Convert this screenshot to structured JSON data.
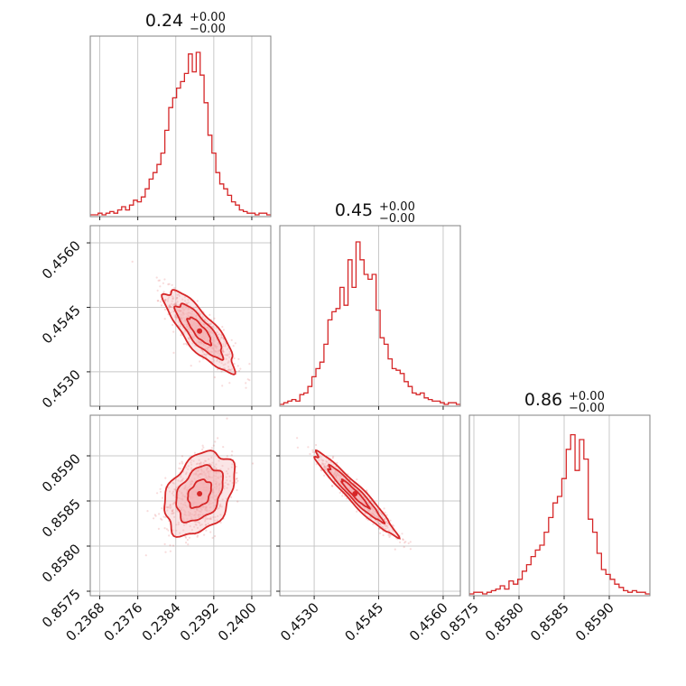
{
  "chart_data": {
    "type": "corner",
    "color": "#d62728",
    "fill_color": "#f4b4b7",
    "grid": true,
    "parameters": [
      {
        "title_value": "0.24",
        "title_plus": "+0.00",
        "title_minus": "−0.00",
        "range": [
          0.2366,
          0.2404
        ],
        "ticks": [
          0.2368,
          0.2376,
          0.2384,
          0.2392,
          0.24
        ],
        "tick_labels": [
          "0.2368",
          "0.2376",
          "0.2384",
          "0.2392",
          "0.2400"
        ],
        "mean": 0.2389,
        "sigma": 0.00035,
        "histogram": [
          0,
          0,
          0.01,
          0,
          0.01,
          0.02,
          0.01,
          0.03,
          0.05,
          0.03,
          0.06,
          0.09,
          0.08,
          0.11,
          0.16,
          0.22,
          0.26,
          0.31,
          0.38,
          0.52,
          0.66,
          0.72,
          0.78,
          0.82,
          0.87,
          0.99,
          0.88,
          1.0,
          0.86,
          0.69,
          0.49,
          0.38,
          0.26,
          0.19,
          0.16,
          0.12,
          0.08,
          0.06,
          0.03,
          0.02,
          0.01,
          0.01,
          0,
          0.01,
          0.01,
          0
        ]
      },
      {
        "title_value": "0.45",
        "title_plus": "+0.00",
        "title_minus": "−0.00",
        "range": [
          0.4522,
          0.4564
        ],
        "ticks": [
          0.453,
          0.4545,
          0.456
        ],
        "tick_labels": [
          "0.4530",
          "0.4545",
          "0.4560"
        ],
        "y_ticks": [
          0.453,
          0.4545,
          0.456
        ],
        "y_tick_labels": [
          "0.4530",
          "0.4545",
          "0.4560"
        ],
        "mean": 0.45395,
        "sigma": 0.00045,
        "histogram": [
          0,
          0.01,
          0.02,
          0.03,
          0.02,
          0.06,
          0.07,
          0.11,
          0.17,
          0.22,
          0.26,
          0.37,
          0.52,
          0.57,
          0.59,
          0.72,
          0.61,
          0.89,
          0.72,
          1.0,
          0.89,
          0.8,
          0.77,
          0.8,
          0.58,
          0.41,
          0.37,
          0.28,
          0.22,
          0.21,
          0.19,
          0.14,
          0.11,
          0.07,
          0.06,
          0.07,
          0.04,
          0.03,
          0.02,
          0.02,
          0.01,
          0,
          0.01,
          0.01,
          0
        ]
      },
      {
        "title_value": "0.86",
        "title_plus": "+0.00",
        "title_minus": "−0.00",
        "range": [
          0.85745,
          0.85945
        ],
        "ticks": [
          0.8575,
          0.858,
          0.8585,
          0.859
        ],
        "tick_labels": [
          "0.8575",
          "0.8580",
          "0.8585",
          "0.8590"
        ],
        "y_ticks": [
          0.8575,
          0.858,
          0.8585,
          0.859
        ],
        "y_tick_labels": [
          "0.8575",
          "0.8580",
          "0.8585",
          "0.8590"
        ],
        "mean": 0.85858,
        "sigma": 0.00022,
        "histogram": [
          0,
          0.01,
          0.01,
          0,
          0.01,
          0.02,
          0.03,
          0.05,
          0.03,
          0.08,
          0.06,
          0.09,
          0.14,
          0.18,
          0.23,
          0.27,
          0.3,
          0.38,
          0.47,
          0.56,
          0.6,
          0.71,
          0.89,
          0.98,
          0.76,
          0.95,
          0.83,
          0.46,
          0.38,
          0.25,
          0.15,
          0.12,
          0.09,
          0.06,
          0.04,
          0.02,
          0.01,
          0.02,
          0.01,
          0.01,
          0
        ]
      }
    ],
    "correlations": {
      "1_0": -0.82,
      "2_0": 0.35,
      "2_1": -0.96
    }
  }
}
